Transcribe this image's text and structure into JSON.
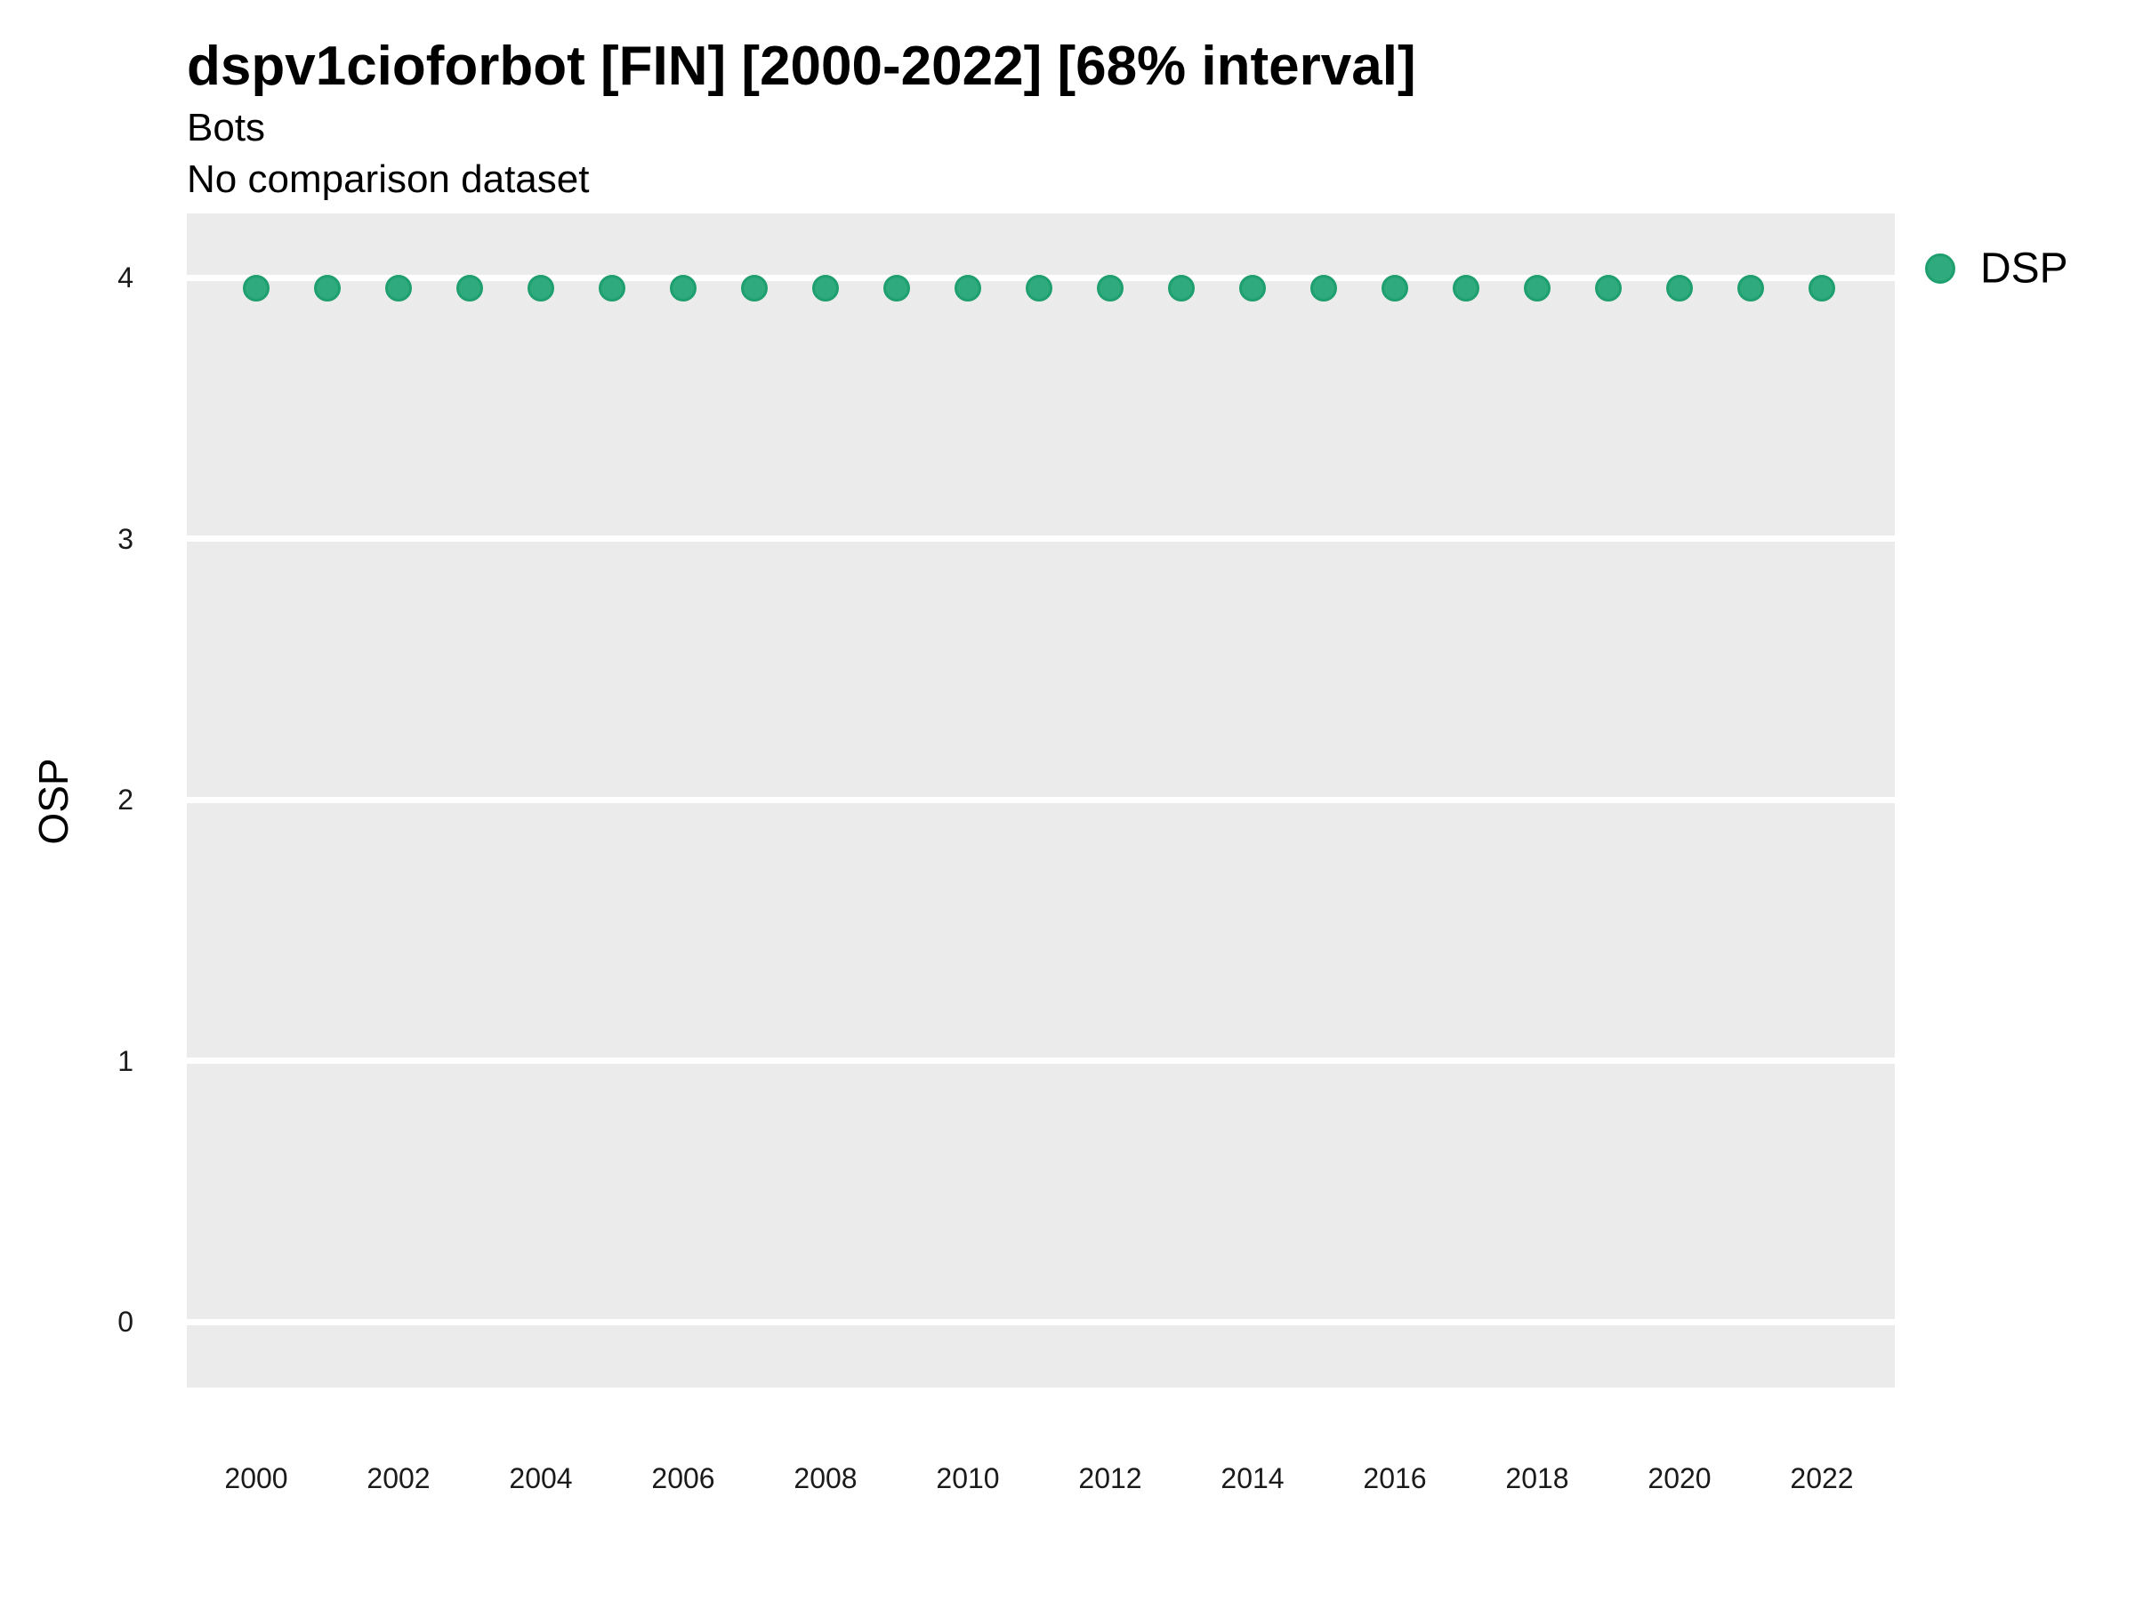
{
  "header": {
    "title": "dspv1cioforbot [FIN] [2000-2022] [68% interval]",
    "subtitle": "Bots",
    "subtitle2": "No comparison dataset"
  },
  "legend": {
    "items": [
      {
        "label": "DSP",
        "color": "#2FAA7E",
        "border": "#1EA06E"
      }
    ]
  },
  "chart_data": {
    "type": "scatter",
    "title": "dspv1cioforbot [FIN] [2000-2022] [68% interval]",
    "subtitle": "Bots",
    "subtitle2": "No comparison dataset",
    "xlabel": "",
    "ylabel": "OSP",
    "x": [
      2000,
      2001,
      2002,
      2003,
      2004,
      2005,
      2006,
      2007,
      2008,
      2009,
      2010,
      2011,
      2012,
      2013,
      2014,
      2015,
      2016,
      2017,
      2018,
      2019,
      2020,
      2021,
      2022
    ],
    "series": [
      {
        "name": "DSP",
        "values": [
          3.96,
          3.96,
          3.96,
          3.96,
          3.96,
          3.96,
          3.96,
          3.96,
          3.96,
          3.96,
          3.96,
          3.96,
          3.96,
          3.96,
          3.96,
          3.96,
          3.96,
          3.96,
          3.96,
          3.96,
          3.96,
          3.96,
          3.96
        ]
      }
    ],
    "xticks": [
      2000,
      2002,
      2004,
      2006,
      2008,
      2010,
      2012,
      2014,
      2016,
      2018,
      2020,
      2022
    ],
    "yticks": [
      0,
      1,
      2,
      3,
      4
    ],
    "ylim": [
      -0.25,
      4.25
    ],
    "grid": "horizontal-major-only",
    "grid_color": "#FFFFFF",
    "panel_bg": "#EBEBEB",
    "legend_position": "right",
    "point_color": "#2FAA7E",
    "point_border": "#1EA06E"
  }
}
